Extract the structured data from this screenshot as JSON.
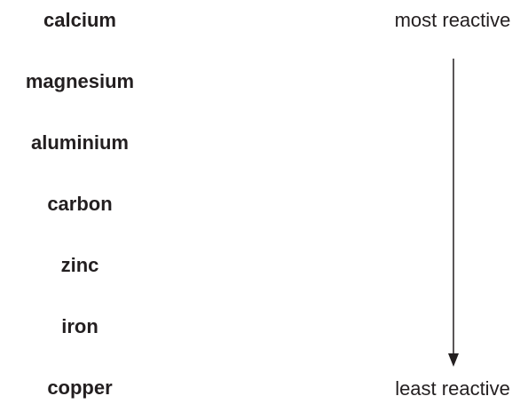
{
  "elements": [
    "calcium",
    "magnesium",
    "aluminium",
    "carbon",
    "zinc",
    "iron",
    "copper"
  ],
  "top_label": "most reactive",
  "bottom_label": "least reactive"
}
